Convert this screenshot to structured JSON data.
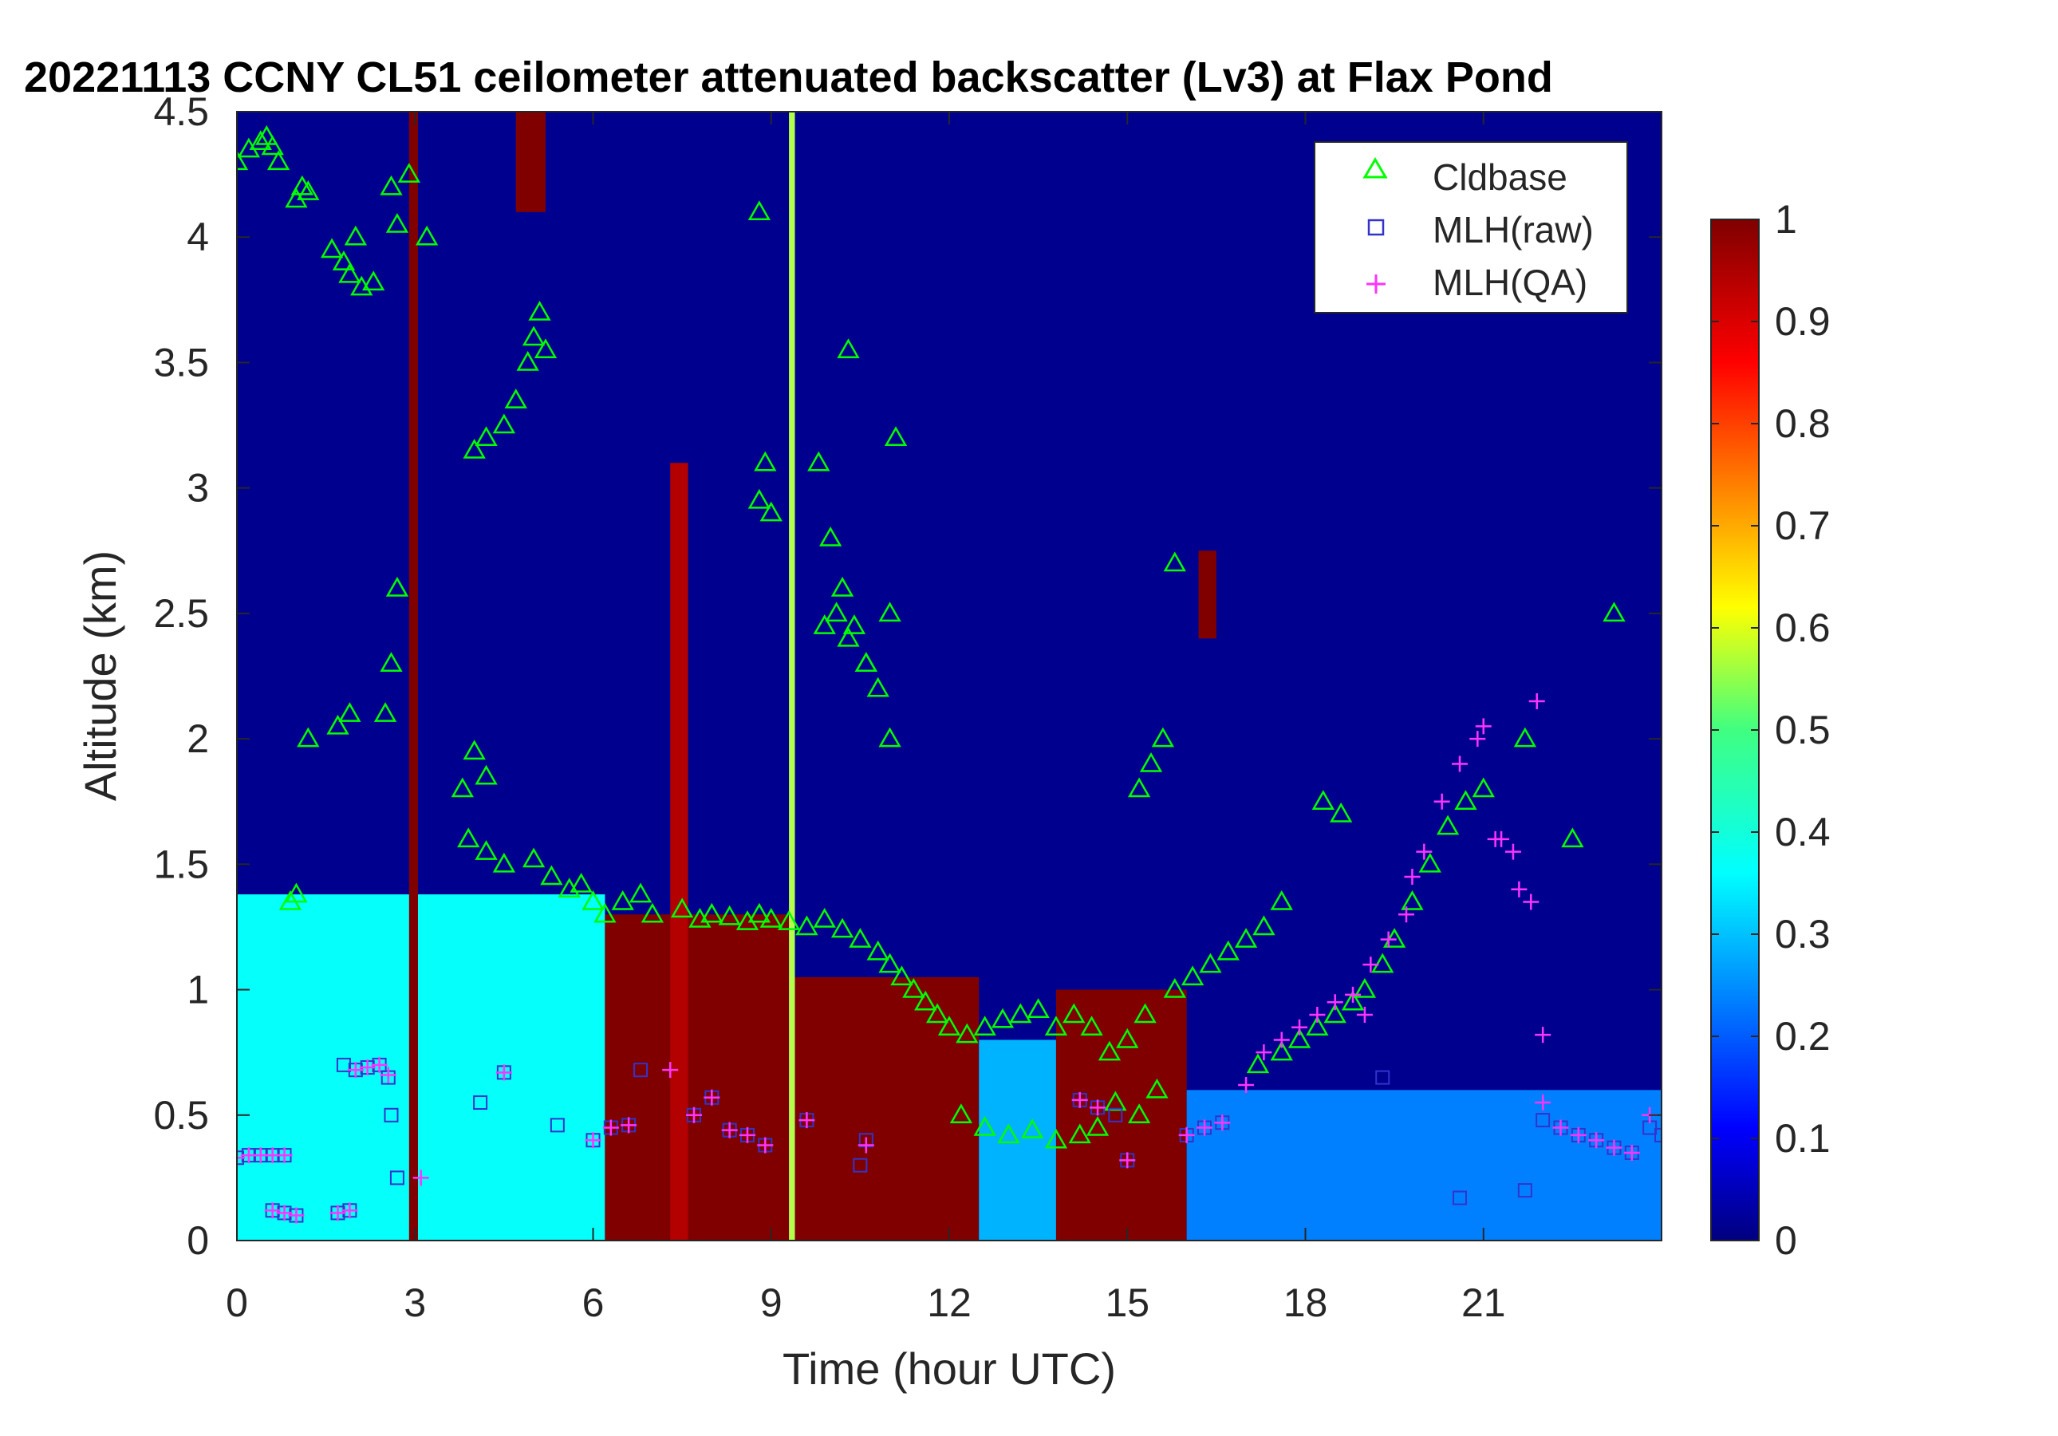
{
  "chart_data": {
    "type": "heatmap",
    "title": "20221113 CCNY CL51 ceilometer attenuated backscatter (Lv3) at Flax Pond",
    "xlabel": "Time (hour UTC)",
    "ylabel": "Altitude (km)",
    "xlim": [
      0,
      24
    ],
    "ylim": [
      0,
      4.5
    ],
    "xticks": [
      0,
      3,
      6,
      9,
      12,
      15,
      18,
      21
    ],
    "xtick_labels": [
      "0",
      "3",
      "6",
      "9",
      "12",
      "15",
      "18",
      "21"
    ],
    "yticks": [
      0,
      0.5,
      1,
      1.5,
      2,
      2.5,
      3,
      3.5,
      4,
      4.5
    ],
    "ytick_labels": [
      "0",
      "0.5",
      "1",
      "1.5",
      "2",
      "2.5",
      "3",
      "3.5",
      "4",
      "4.5"
    ],
    "colorbar": {
      "colormap": "jet",
      "range": [
        0,
        1
      ],
      "ticks": [
        0,
        0.1,
        0.2,
        0.3,
        0.4,
        0.5,
        0.6,
        0.7,
        0.8,
        0.9,
        1
      ],
      "tick_labels": [
        "0",
        "0.1",
        "0.2",
        "0.3",
        "0.4",
        "0.5",
        "0.6",
        "0.7",
        "0.8",
        "0.9",
        "1"
      ]
    },
    "legend": {
      "placement": "top-right",
      "entries": [
        {
          "label": "Cldbase",
          "marker": "triangle",
          "color": "#00ff00"
        },
        {
          "label": "MLH(raw)",
          "marker": "square",
          "color": "#3333cc"
        },
        {
          "label": "MLH(QA)",
          "marker": "plus",
          "color": "#ff33ff"
        }
      ]
    },
    "regions": [
      {
        "x": [
          0,
          6.2
        ],
        "y": [
          0,
          1.38
        ],
        "value": 0.38
      },
      {
        "x": [
          6.2,
          9.3
        ],
        "y": [
          0,
          1.3
        ],
        "value": 1.0
      },
      {
        "x": [
          9.3,
          12.5
        ],
        "y": [
          0,
          1.05
        ],
        "value": 1.0
      },
      {
        "x": [
          12.5,
          13.8
        ],
        "y": [
          0,
          0.8
        ],
        "value": 0.3
      },
      {
        "x": [
          13.8,
          16.0
        ],
        "y": [
          0,
          1.0
        ],
        "value": 1.0
      },
      {
        "x": [
          16.0,
          24.0
        ],
        "y": [
          0,
          0.6
        ],
        "value": 0.25
      },
      {
        "x": [
          2.9,
          3.05
        ],
        "y": [
          0,
          4.5
        ],
        "value": 1.0
      },
      {
        "x": [
          4.7,
          5.2
        ],
        "y": [
          4.1,
          4.5
        ],
        "value": 1.0
      },
      {
        "x": [
          16.2,
          16.5
        ],
        "y": [
          2.4,
          2.75
        ],
        "value": 1.0
      },
      {
        "x": [
          7.3,
          7.6
        ],
        "y": [
          0,
          3.1
        ],
        "value": 0.95
      },
      {
        "x": [
          9.3,
          9.4
        ],
        "y": [
          0,
          4.5
        ],
        "value": 0.55
      }
    ],
    "series": [
      {
        "name": "Cldbase",
        "x": [
          0.0,
          0.2,
          0.4,
          0.5,
          0.6,
          0.7,
          1.0,
          1.1,
          1.2,
          1.6,
          1.8,
          1.9,
          2.0,
          2.1,
          2.3,
          2.6,
          2.7,
          4.0,
          4.2,
          4.5,
          4.7,
          4.9,
          5.0,
          5.1,
          5.2,
          1.2,
          1.7,
          1.9,
          2.5,
          2.6,
          2.7,
          3.8,
          4.0,
          4.2,
          0.9,
          1.0,
          3.9,
          4.2,
          4.5,
          5.0,
          5.3,
          5.6,
          5.8,
          6.0,
          6.2,
          6.5,
          6.8,
          7.0,
          7.5,
          7.8,
          8.0,
          8.3,
          8.6,
          8.8,
          9.0,
          9.3,
          9.6,
          9.9,
          10.2,
          10.5,
          10.8,
          11.0,
          11.2,
          11.4,
          11.6,
          11.8,
          12.0,
          12.3,
          12.6,
          12.9,
          13.2,
          13.5,
          13.8,
          14.1,
          14.4,
          14.7,
          15.0,
          15.3,
          12.2,
          12.6,
          13.0,
          13.4,
          13.8,
          14.2,
          14.5,
          14.8,
          15.2,
          15.5,
          15.8,
          16.1,
          16.4,
          16.7,
          17.0,
          17.3,
          17.6,
          15.2,
          15.4,
          15.6,
          15.8,
          8.8,
          8.9,
          9.0,
          9.8,
          10.0,
          10.2,
          10.4,
          10.6,
          10.8,
          11.0,
          9.9,
          10.1,
          10.3,
          10.6,
          11.0,
          11.1,
          10.3,
          8.8,
          17.2,
          17.6,
          17.9,
          18.2,
          18.5,
          18.8,
          19.0,
          19.3,
          19.5,
          19.8,
          20.1,
          20.4,
          20.7,
          21.0,
          18.3,
          18.6,
          21.7,
          22.5,
          23.2,
          2.9,
          3.2
        ],
        "y": [
          4.3,
          4.35,
          4.38,
          4.4,
          4.36,
          4.3,
          4.15,
          4.2,
          4.18,
          3.95,
          3.9,
          3.85,
          4.0,
          3.8,
          3.82,
          4.2,
          4.05,
          3.15,
          3.2,
          3.25,
          3.35,
          3.5,
          3.6,
          3.7,
          3.55,
          2.0,
          2.05,
          2.1,
          2.1,
          2.3,
          2.6,
          1.8,
          1.95,
          1.85,
          1.35,
          1.38,
          1.6,
          1.55,
          1.5,
          1.52,
          1.45,
          1.4,
          1.42,
          1.35,
          1.3,
          1.35,
          1.38,
          1.3,
          1.32,
          1.28,
          1.3,
          1.29,
          1.27,
          1.3,
          1.28,
          1.27,
          1.25,
          1.28,
          1.24,
          1.2,
          1.15,
          1.1,
          1.05,
          1.0,
          0.95,
          0.9,
          0.85,
          0.82,
          0.85,
          0.88,
          0.9,
          0.92,
          0.85,
          0.9,
          0.85,
          0.75,
          0.8,
          0.9,
          0.5,
          0.45,
          0.42,
          0.44,
          0.4,
          0.42,
          0.45,
          0.55,
          0.5,
          0.6,
          1.0,
          1.05,
          1.1,
          1.15,
          1.2,
          1.25,
          1.35,
          1.8,
          1.9,
          2.0,
          2.7,
          2.95,
          3.1,
          2.9,
          3.1,
          2.8,
          2.6,
          2.45,
          2.3,
          2.2,
          2.0,
          2.45,
          2.5,
          2.4,
          2.3,
          2.5,
          3.2,
          3.55,
          4.1,
          0.7,
          0.75,
          0.8,
          0.85,
          0.9,
          0.95,
          1.0,
          1.1,
          1.2,
          1.35,
          1.5,
          1.65,
          1.75,
          1.8,
          1.75,
          1.7,
          2.0,
          1.6,
          2.5,
          4.25,
          4.0
        ]
      },
      {
        "name": "MLH(raw)",
        "x": [
          0.0,
          0.2,
          0.4,
          0.6,
          0.8,
          0.6,
          0.8,
          1.0,
          1.7,
          1.9,
          1.8,
          2.0,
          2.2,
          2.4,
          2.55,
          2.6,
          2.7,
          4.1,
          4.5,
          5.4,
          6.0,
          6.3,
          6.6,
          6.8,
          7.7,
          8.0,
          8.3,
          8.6,
          8.9,
          9.6,
          10.5,
          10.6,
          14.2,
          14.5,
          14.8,
          15.0,
          16.0,
          16.3,
          16.6,
          19.3,
          20.6,
          21.7,
          22.0,
          22.3,
          22.6,
          22.9,
          23.2,
          23.5,
          23.8,
          24.0
        ],
        "y": [
          0.33,
          0.34,
          0.34,
          0.34,
          0.34,
          0.12,
          0.11,
          0.1,
          0.11,
          0.12,
          0.7,
          0.68,
          0.69,
          0.7,
          0.65,
          0.5,
          0.25,
          0.55,
          0.67,
          0.46,
          0.4,
          0.45,
          0.46,
          0.68,
          0.5,
          0.57,
          0.44,
          0.42,
          0.38,
          0.48,
          0.3,
          0.4,
          0.56,
          0.53,
          0.5,
          0.32,
          0.42,
          0.45,
          0.47,
          0.65,
          0.17,
          0.2,
          0.48,
          0.45,
          0.42,
          0.4,
          0.37,
          0.35,
          0.45,
          0.42
        ]
      },
      {
        "name": "MLH(QA)",
        "x": [
          0.0,
          0.2,
          0.4,
          0.6,
          0.8,
          0.6,
          0.8,
          1.0,
          1.7,
          1.9,
          2.0,
          2.2,
          2.4,
          2.55,
          3.1,
          4.5,
          6.0,
          6.3,
          6.6,
          7.3,
          7.7,
          8.0,
          8.3,
          8.6,
          8.9,
          9.6,
          10.6,
          14.2,
          14.5,
          15.0,
          16.0,
          16.3,
          16.6,
          17.0,
          17.3,
          17.6,
          17.9,
          18.2,
          18.5,
          18.8,
          19.1,
          19.4,
          19.7,
          19.8,
          20.0,
          20.3,
          20.6,
          20.9,
          21.2,
          21.5,
          21.8,
          22.0,
          22.3,
          22.6,
          22.9,
          23.2,
          23.5,
          23.8,
          21.9,
          22.0,
          19.0,
          21.0,
          21.3,
          21.6
        ],
        "y": [
          0.33,
          0.34,
          0.34,
          0.34,
          0.34,
          0.12,
          0.11,
          0.1,
          0.11,
          0.12,
          0.68,
          0.69,
          0.7,
          0.66,
          0.25,
          0.67,
          0.4,
          0.45,
          0.46,
          0.68,
          0.5,
          0.57,
          0.44,
          0.42,
          0.38,
          0.48,
          0.38,
          0.56,
          0.53,
          0.32,
          0.42,
          0.45,
          0.47,
          0.62,
          0.75,
          0.8,
          0.85,
          0.9,
          0.95,
          0.98,
          1.1,
          1.2,
          1.3,
          1.45,
          1.55,
          1.75,
          1.9,
          2.0,
          1.6,
          1.55,
          1.35,
          0.55,
          0.45,
          0.42,
          0.4,
          0.37,
          0.35,
          0.5,
          2.15,
          0.82,
          0.9,
          2.05,
          1.6,
          1.4
        ]
      }
    ]
  }
}
